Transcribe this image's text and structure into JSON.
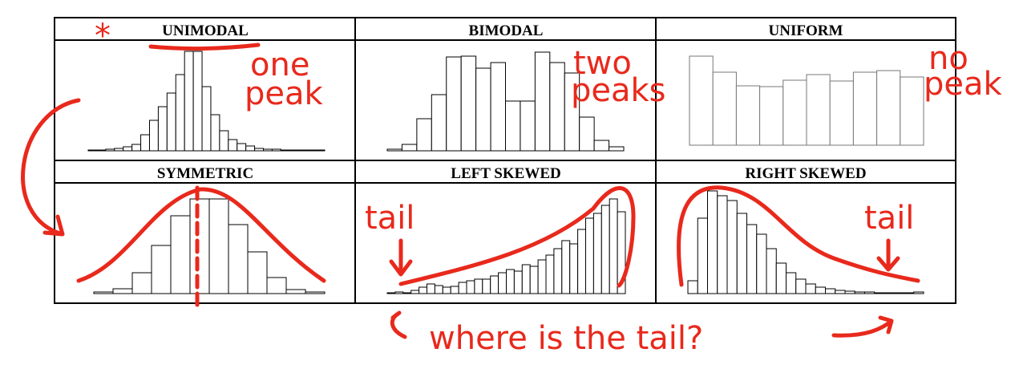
{
  "cells": [
    {
      "title": "UNIMODAL",
      "bars": [
        1,
        1,
        2,
        3,
        5,
        8,
        20,
        38,
        55,
        72,
        95,
        124,
        124,
        80,
        45,
        25,
        14,
        9,
        6,
        3,
        2,
        2,
        1,
        1,
        1,
        1,
        1
      ]
    },
    {
      "title": "BIMODAL",
      "bars": [
        2,
        8,
        40,
        70,
        117,
        118,
        103,
        110,
        62,
        62,
        123,
        110,
        97,
        42,
        13,
        5
      ]
    },
    {
      "title": "UNIFORM",
      "bars": [
        111,
        91,
        74,
        73,
        81,
        88,
        80,
        91,
        93,
        85
      ]
    },
    {
      "title": "SYMMETRIC",
      "bars": [
        2,
        6,
        26,
        60,
        97,
        118,
        118,
        86,
        52,
        20,
        5,
        2
      ]
    },
    {
      "title": "LEFT SKEWED",
      "bars": [
        1,
        2,
        1,
        4,
        8,
        12,
        10,
        8,
        9,
        14,
        16,
        18,
        18,
        22,
        26,
        30,
        28,
        36,
        34,
        42,
        48,
        56,
        66,
        62,
        80,
        94,
        100,
        110,
        118,
        102
      ]
    },
    {
      "title": "RIGHT SKEWED",
      "bars": [
        16,
        94,
        128,
        122,
        116,
        100,
        86,
        74,
        56,
        38,
        26,
        18,
        12,
        8,
        6,
        4,
        3,
        2,
        2,
        1,
        1,
        1,
        1,
        2
      ]
    }
  ],
  "annotations": {
    "star": "*",
    "one_peak": [
      "one",
      "peak"
    ],
    "two_peaks": [
      "two",
      "peaks"
    ],
    "no_peak": [
      "no",
      "peak"
    ],
    "tail_left": "tail",
    "tail_right": "tail",
    "question": "where is the tail?"
  }
}
